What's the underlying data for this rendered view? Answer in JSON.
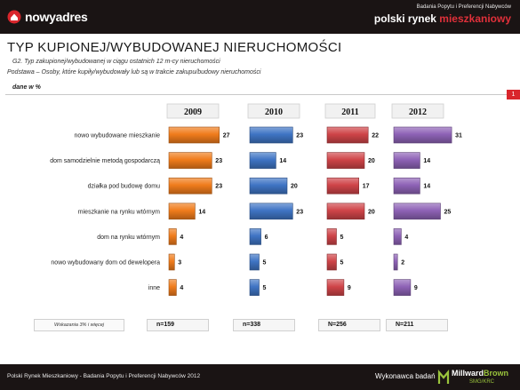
{
  "header": {
    "logo_text": "nowyadres",
    "subtitle": "Badania Popytu i Preferencji Nabywców",
    "brand_main": "polski rynek ",
    "brand_accent": "mieszkaniowy"
  },
  "title": "TYP KUPIONEJ/WYBUDOWANEJ NIERUCHOMOŚCI",
  "question": "G2. Typ zakupionej/wybudowanej w ciągu ostatnich 12 m-cy nieruchomości",
  "base": "Podstawa – Osoby, które kupiły/wybudowały lub są w trakcie zakupu/budowy nieruchomości",
  "units": "dane w %",
  "page_number": "1",
  "footnote": "Wskazania 3% i więcej",
  "chart_data": {
    "type": "bar",
    "orientation": "horizontal",
    "categories": [
      "nowo wybudowane mieszkanie",
      "dom samodzielnie metodą gospodarczą",
      "działka pod budowę domu",
      "mieszkanie na rynku wtórnym",
      "dom na rynku wtórnym",
      "nowo wybudowany dom od dewelopera",
      "inne"
    ],
    "series": [
      {
        "name": "2009",
        "values": [
          27,
          23,
          23,
          14,
          4,
          3,
          4
        ],
        "color": "#f07c1c",
        "n": "n=159"
      },
      {
        "name": "2010",
        "values": [
          23,
          14,
          20,
          23,
          6,
          5,
          5
        ],
        "color": "#3f74c4",
        "n": "n=338"
      },
      {
        "name": "2011",
        "values": [
          22,
          20,
          17,
          20,
          5,
          5,
          9
        ],
        "color": "#cf4448",
        "n": "N=256"
      },
      {
        "name": "2012",
        "values": [
          31,
          14,
          14,
          25,
          4,
          2,
          9
        ],
        "color": "#8e62b6",
        "n": "N=211"
      }
    ],
    "title": "",
    "xlabel": "",
    "ylabel": ""
  },
  "footer": {
    "left_text": "Polski Rynek Mieszkaniowy - Badania Popytu i Preferencji Nabywców 2012",
    "executor_label": "Wykonawca badań",
    "company_a": "Millward",
    "company_b": "Brown",
    "company_sub": "SMG/KRC"
  }
}
